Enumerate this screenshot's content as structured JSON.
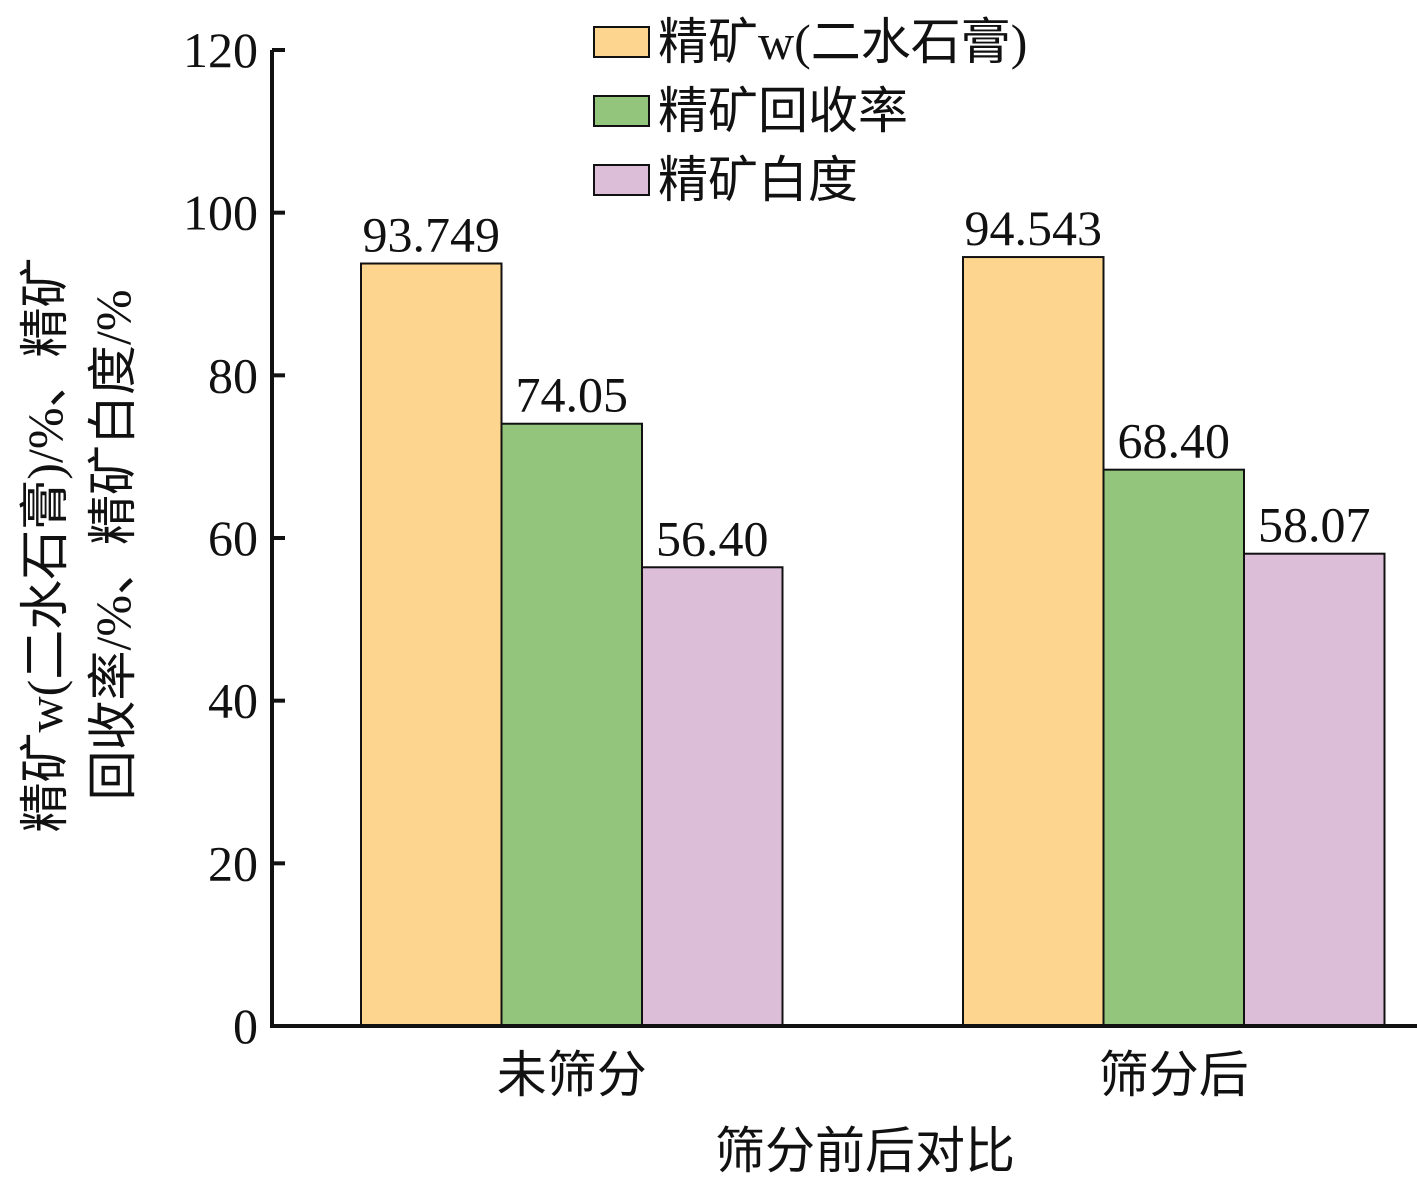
{
  "chart_data": {
    "type": "bar",
    "categories": [
      "未筛分",
      "筛分后"
    ],
    "series": [
      {
        "name": "精矿w(二水石膏)",
        "values": [
          93.749,
          94.543
        ],
        "labels": [
          "93.749",
          "94.543"
        ],
        "color": "#fdd58f"
      },
      {
        "name": "精矿回收率",
        "values": [
          74.05,
          68.4
        ],
        "labels": [
          "74.05",
          "68.40"
        ],
        "color": "#94c57c"
      },
      {
        "name": "精矿白度",
        "values": [
          56.4,
          58.07
        ],
        "labels": [
          "56.40",
          "58.07"
        ],
        "color": "#dcbed8"
      }
    ],
    "xlabel": "筛分前后对比",
    "ylabel_lines": [
      "精矿w(二水石膏)/%、精矿",
      "回收率/%、精矿白度/%"
    ],
    "ylim": [
      0,
      120
    ],
    "yticks": [
      0,
      20,
      40,
      60,
      80,
      100,
      120
    ],
    "grid": false,
    "legend_position": "top-center"
  }
}
